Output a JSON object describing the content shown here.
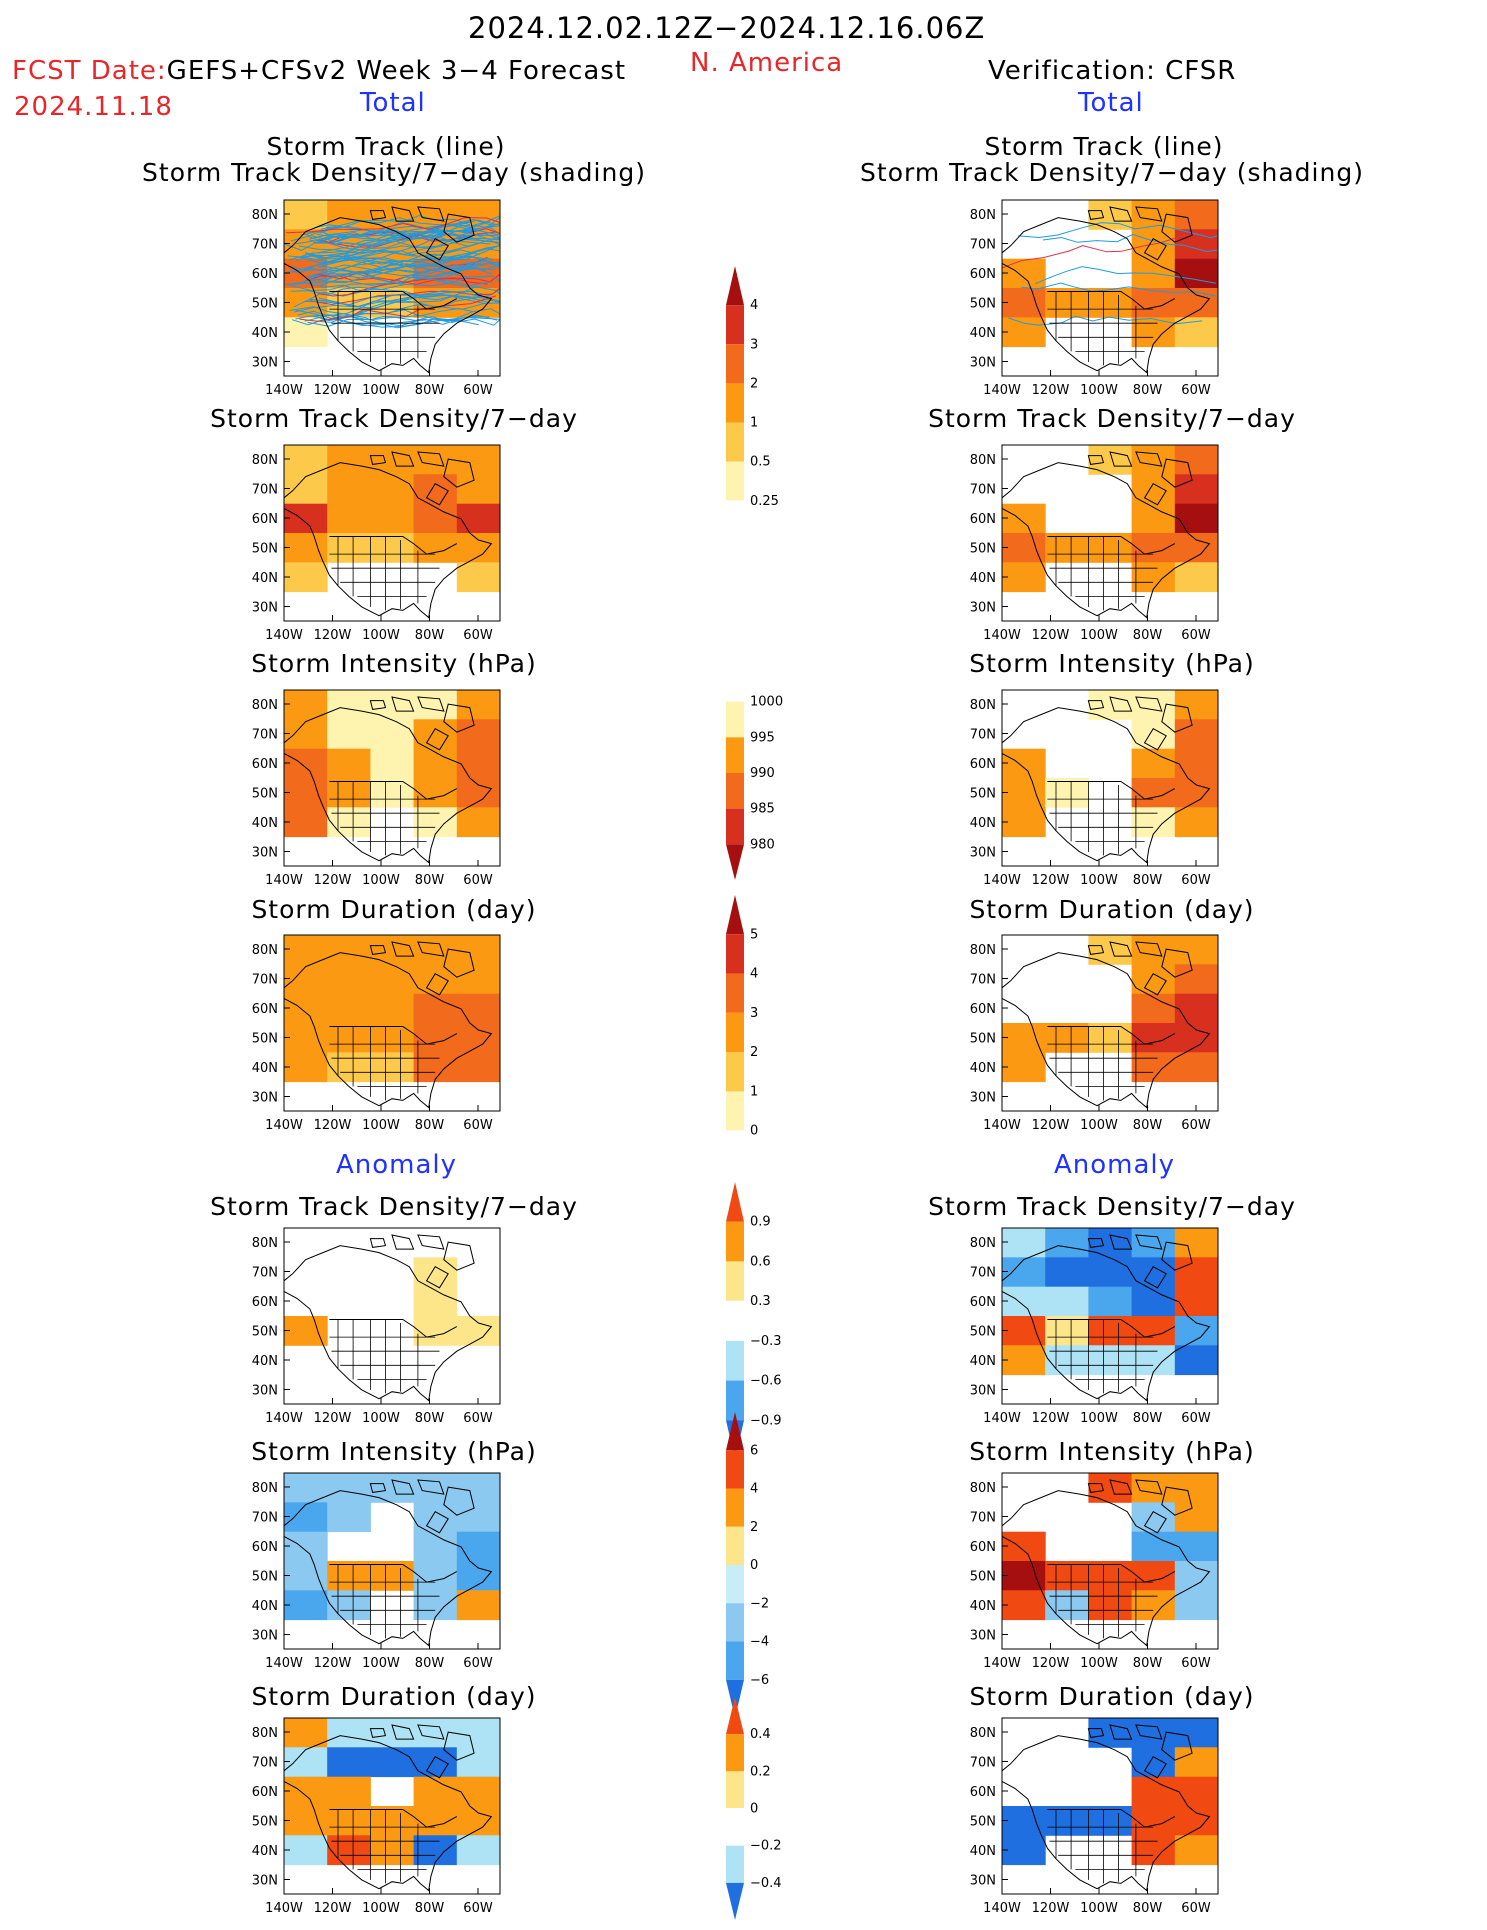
{
  "header": {
    "date_range": "2024.12.02.12Z−2024.12.16.06Z",
    "fcst_label": "FCST Date:",
    "fcst_model": "GEFS+CFSv2 Week 3−4 Forecast",
    "fcst_date": "2024.11.18",
    "region": "N. America",
    "verification": "Verification: CFSR",
    "left_total": "Total",
    "right_total": "Total",
    "left_anomaly": "Anomaly",
    "right_anomaly": "Anomaly"
  },
  "titles": {
    "storm_track_line": "Storm Track (line)",
    "storm_track_shading": "Storm Track Density/7−day (shading)",
    "track_density": "Storm Track Density/7−day",
    "intensity": "Storm Intensity (hPa)",
    "duration": "Storm Duration (day)"
  },
  "axes": {
    "x_ticks": [
      "140W",
      "120W",
      "100W",
      "80W",
      "60W"
    ],
    "y_ticks": [
      "80N",
      "70N",
      "60N",
      "50N",
      "40N",
      "30N"
    ]
  },
  "colorbars": {
    "density": {
      "labels": [
        "4",
        "3",
        "2",
        "1",
        "0.5",
        "0.25"
      ],
      "colors": [
        "#a50f0f",
        "#d7301f",
        "#f26a1b",
        "#fb9a12",
        "#fdc94a",
        "#fff3b0",
        "#ffffff"
      ]
    },
    "intensity": {
      "labels": [
        "1000",
        "995",
        "990",
        "985",
        "980"
      ],
      "colors": [
        "#ffffff",
        "#fff3b0",
        "#fb9a12",
        "#f26a1b",
        "#d7301f",
        "#a50f0f"
      ]
    },
    "duration": {
      "labels": [
        "5",
        "4",
        "3",
        "2",
        "1",
        "0"
      ],
      "colors": [
        "#a50f0f",
        "#d7301f",
        "#f26a1b",
        "#fb9a12",
        "#fdc94a",
        "#fff3b0",
        "#ffffff"
      ]
    },
    "anom_density": {
      "labels": [
        "0.9",
        "0.6",
        "0.3",
        "−0.3",
        "−0.6",
        "−0.9"
      ],
      "colors": [
        "#f04a12",
        "#fb9a12",
        "#fde68a",
        "#ffffff",
        "#aee3f5",
        "#4aa7ee",
        "#1f6fe0"
      ]
    },
    "anom_intensity": {
      "labels": [
        "6",
        "4",
        "2",
        "0",
        "−2",
        "−4",
        "−6"
      ],
      "colors": [
        "#a50f0f",
        "#f04a12",
        "#fb9a12",
        "#fde68a",
        "#c8ecf8",
        "#8cc9f0",
        "#4aa7ee",
        "#1f6fe0"
      ]
    },
    "anom_duration": {
      "labels": [
        "0.4",
        "0.2",
        "0",
        "−0.2",
        "−0.4"
      ],
      "colors": [
        "#f04a12",
        "#fb9a12",
        "#fde68a",
        "#ffffff",
        "#aee3f5",
        "#1f6fe0"
      ]
    }
  },
  "chart_data": [
    {
      "type": "heatmap",
      "title": "Storm Track (line) / Storm Track Density/7−day (shading)",
      "column": "GEFS+CFSv2 Week 3−4 Forecast",
      "section": "Total",
      "grid_rows_lat": [
        "80N",
        "70N",
        "60N",
        "50N",
        "40N",
        "30N"
      ],
      "grid_cols_lon": [
        "140W",
        "120W",
        "100W",
        "80W",
        "60W"
      ],
      "values": [
        [
          0.5,
          1,
          1,
          1,
          1
        ],
        [
          1,
          1,
          1,
          1,
          1
        ],
        [
          2,
          1,
          1,
          2,
          2
        ],
        [
          1,
          0.5,
          0.5,
          1,
          1
        ],
        [
          0.25,
          0,
          0,
          0,
          0
        ],
        [
          0,
          0,
          0,
          0,
          0
        ]
      ],
      "has_track_lines": true
    },
    {
      "type": "heatmap",
      "title": "Storm Track (line) / Storm Track Density/7−day (shading)",
      "column": "Verification: CFSR",
      "section": "Total",
      "grid_rows_lat": [
        "80N",
        "70N",
        "60N",
        "50N",
        "40N",
        "30N"
      ],
      "grid_cols_lon": [
        "140W",
        "120W",
        "100W",
        "80W",
        "60W"
      ],
      "values": [
        [
          0,
          0,
          0.5,
          1,
          2
        ],
        [
          0,
          0,
          0,
          1,
          3
        ],
        [
          1,
          0,
          0,
          1,
          4
        ],
        [
          2,
          1,
          1,
          2,
          2
        ],
        [
          1,
          0,
          0,
          1,
          0.5
        ],
        [
          0,
          0,
          0,
          0,
          0
        ]
      ],
      "has_track_lines": true
    },
    {
      "type": "heatmap",
      "title": "Storm Track Density/7−day",
      "column": "GEFS+CFSv2 Week 3−4 Forecast",
      "section": "Total",
      "values": [
        [
          0.5,
          1,
          1,
          1,
          1
        ],
        [
          0.5,
          1,
          1,
          2,
          1
        ],
        [
          3,
          1,
          1,
          2,
          3
        ],
        [
          1,
          0.5,
          0.5,
          1,
          1
        ],
        [
          0.5,
          0,
          0,
          0,
          0.5
        ],
        [
          0,
          0,
          0,
          0,
          0
        ]
      ]
    },
    {
      "type": "heatmap",
      "title": "Storm Track Density/7−day",
      "column": "Verification: CFSR",
      "section": "Total",
      "values": [
        [
          0,
          0,
          0.5,
          1,
          2
        ],
        [
          0,
          0,
          0,
          1,
          3
        ],
        [
          1,
          0,
          0,
          1,
          4
        ],
        [
          2,
          1,
          1,
          2,
          2
        ],
        [
          1,
          0,
          0,
          1,
          0.5
        ],
        [
          0,
          0,
          0,
          0,
          0
        ]
      ]
    },
    {
      "type": "heatmap",
      "title": "Storm Intensity (hPa)",
      "column": "GEFS+CFSv2 Week 3−4 Forecast",
      "section": "Total",
      "values": [
        [
          990,
          995,
          995,
          995,
          990
        ],
        [
          990,
          995,
          995,
          990,
          985
        ],
        [
          985,
          990,
          995,
          990,
          985
        ],
        [
          985,
          990,
          995,
          990,
          985
        ],
        [
          985,
          995,
          1000,
          995,
          990
        ],
        [
          1000,
          1000,
          1000,
          1000,
          1000
        ]
      ]
    },
    {
      "type": "heatmap",
      "title": "Storm Intensity (hPa)",
      "column": "Verification: CFSR",
      "section": "Total",
      "values": [
        [
          1000,
          1000,
          995,
          995,
          990
        ],
        [
          1000,
          1000,
          1000,
          995,
          985
        ],
        [
          990,
          1000,
          1000,
          990,
          985
        ],
        [
          990,
          995,
          1000,
          985,
          985
        ],
        [
          990,
          1000,
          1000,
          995,
          990
        ],
        [
          1000,
          1000,
          1000,
          1000,
          1000
        ]
      ]
    },
    {
      "type": "heatmap",
      "title": "Storm Duration (day)",
      "column": "GEFS+CFSv2 Week 3−4 Forecast",
      "section": "Total",
      "values": [
        [
          2,
          2,
          2,
          2,
          2
        ],
        [
          2,
          2,
          2,
          2,
          2
        ],
        [
          2,
          2,
          2,
          3,
          3
        ],
        [
          2,
          2,
          2,
          3,
          3
        ],
        [
          2,
          1,
          1,
          3,
          3
        ],
        [
          0,
          0,
          0,
          0,
          0
        ]
      ]
    },
    {
      "type": "heatmap",
      "title": "Storm Duration (day)",
      "column": "Verification: CFSR",
      "section": "Total",
      "values": [
        [
          0,
          0,
          1,
          2,
          2
        ],
        [
          0,
          0,
          0,
          2,
          3
        ],
        [
          0,
          0,
          0,
          3,
          4
        ],
        [
          2,
          2,
          1,
          4,
          4
        ],
        [
          2,
          0,
          0,
          3,
          3
        ],
        [
          0,
          0,
          0,
          0,
          0
        ]
      ]
    },
    {
      "type": "heatmap",
      "title": "Storm Track Density/7−day",
      "column": "GEFS+CFSv2 Week 3−4 Forecast",
      "section": "Anomaly",
      "values": [
        [
          0,
          0,
          0,
          0,
          0
        ],
        [
          0,
          0,
          0,
          0.3,
          0
        ],
        [
          0,
          0,
          0,
          0.3,
          0
        ],
        [
          0.6,
          0,
          0,
          0.3,
          0.3
        ],
        [
          0,
          0,
          0,
          0,
          0
        ],
        [
          0,
          0,
          0,
          0,
          0
        ]
      ]
    },
    {
      "type": "heatmap",
      "title": "Storm Track Density/7−day",
      "column": "Verification: CFSR",
      "section": "Anomaly",
      "values": [
        [
          -0.3,
          -0.6,
          -0.9,
          -0.6,
          0.6
        ],
        [
          -0.6,
          -0.9,
          -0.9,
          -0.9,
          0.9
        ],
        [
          -0.3,
          -0.3,
          -0.6,
          -0.9,
          0.9
        ],
        [
          0.9,
          0.3,
          0.9,
          0.9,
          -0.6
        ],
        [
          0.6,
          -0.3,
          -0.3,
          -0.3,
          -0.9
        ],
        [
          0,
          0,
          0,
          0,
          0
        ]
      ]
    },
    {
      "type": "heatmap",
      "title": "Storm Intensity (hPa)",
      "column": "GEFS+CFSv2 Week 3−4 Forecast",
      "section": "Anomaly",
      "values": [
        [
          -2,
          -2,
          -2,
          -2,
          -2
        ],
        [
          -4,
          -2,
          0,
          -2,
          -2
        ],
        [
          -2,
          0,
          0,
          -2,
          -4
        ],
        [
          -2,
          2,
          2,
          -2,
          -4
        ],
        [
          -4,
          -2,
          0,
          -2,
          2
        ],
        [
          0,
          0,
          0,
          0,
          0
        ]
      ]
    },
    {
      "type": "heatmap",
      "title": "Storm Intensity (hPa)",
      "column": "Verification: CFSR",
      "section": "Anomaly",
      "values": [
        [
          0,
          0,
          4,
          2,
          2
        ],
        [
          0,
          0,
          0,
          -2,
          2
        ],
        [
          4,
          0,
          0,
          -4,
          -4
        ],
        [
          6,
          4,
          4,
          4,
          -2
        ],
        [
          4,
          -2,
          4,
          2,
          -2
        ],
        [
          0,
          0,
          0,
          0,
          0
        ]
      ]
    },
    {
      "type": "heatmap",
      "title": "Storm Duration (day)",
      "column": "GEFS+CFSv2 Week 3−4 Forecast",
      "section": "Anomaly",
      "values": [
        [
          0.2,
          -0.2,
          -0.2,
          -0.2,
          -0.2
        ],
        [
          -0.2,
          -0.4,
          -0.4,
          -0.4,
          -0.2
        ],
        [
          0.2,
          0.2,
          0,
          0.2,
          0.2
        ],
        [
          0.2,
          0.2,
          0.2,
          0.2,
          0.2
        ],
        [
          -0.2,
          0.4,
          0.2,
          -0.4,
          -0.2
        ],
        [
          0,
          0,
          0,
          0,
          0
        ]
      ]
    },
    {
      "type": "heatmap",
      "title": "Storm Duration (day)",
      "column": "Verification: CFSR",
      "section": "Anomaly",
      "values": [
        [
          0,
          0,
          -0.4,
          -0.4,
          -0.4
        ],
        [
          0,
          0,
          0,
          -0.4,
          0.2
        ],
        [
          0,
          0,
          0,
          0.4,
          0.4
        ],
        [
          -0.4,
          -0.4,
          -0.4,
          0.4,
          0.4
        ],
        [
          -0.4,
          0,
          0,
          0.4,
          0.2
        ],
        [
          0,
          0,
          0,
          0,
          0
        ]
      ]
    }
  ]
}
